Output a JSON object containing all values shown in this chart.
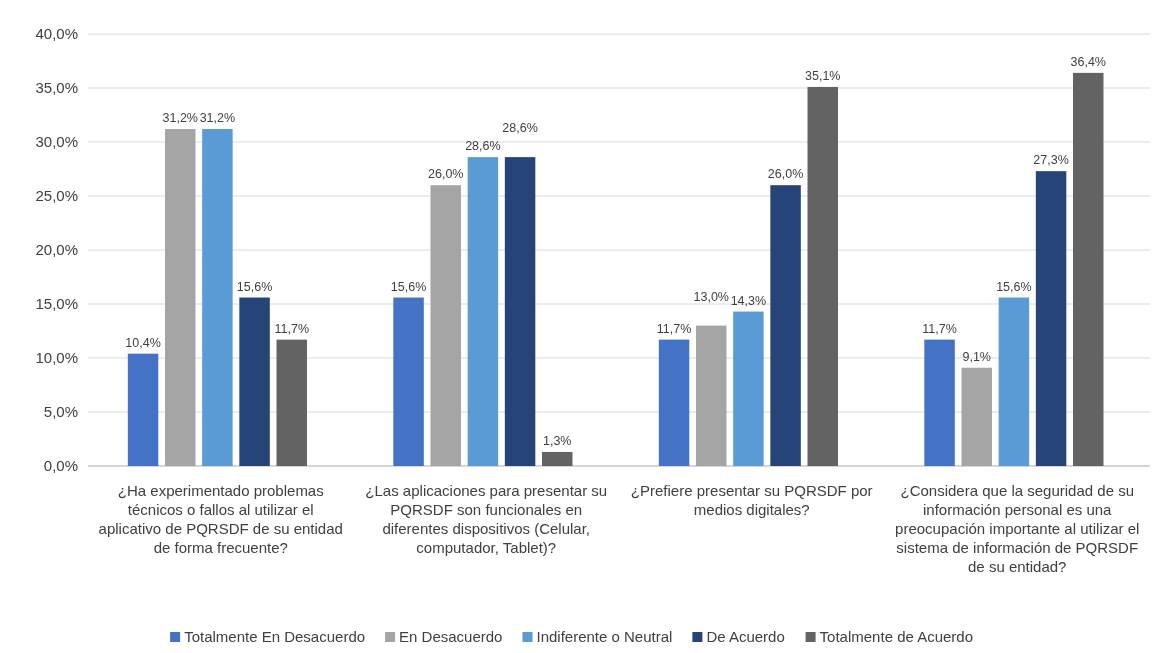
{
  "chart_data": {
    "type": "bar",
    "categories": [
      "¿Ha experimentado problemas técnicos o fallos al utilizar el aplicativo de PQRSDF de su entidad de forma frecuente?",
      "¿Las aplicaciones para presentar su PQRSDF son funcionales en diferentes dispositivos (Celular, computador, Tablet)?",
      "¿Prefiere presentar su PQRSDF por medios digitales?",
      "¿Considera que la seguridad de su información personal es una preocupación importante al utilizar el sistema de información de PQRSDF de su entidad?"
    ],
    "series": [
      {
        "name": "Totalmente En Desacuerdo",
        "color": "#4472c4",
        "values": [
          10.4,
          15.6,
          11.7,
          11.7
        ],
        "value_labels": [
          "10,4%",
          "15,6%",
          "11,7%",
          "11,7%"
        ]
      },
      {
        "name": "En Desacuerdo",
        "color": "#a5a5a5",
        "values": [
          31.2,
          26.0,
          13.0,
          9.1
        ],
        "value_labels": [
          "31,2%",
          "26,0%",
          "13,0%",
          "9,1%"
        ]
      },
      {
        "name": "Indiferente o Neutral",
        "color": "#5b9bd5",
        "values": [
          31.2,
          28.6,
          14.3,
          15.6
        ],
        "value_labels": [
          "31,2%",
          "28,6%",
          "14,3%",
          "15,6%"
        ]
      },
      {
        "name": "De Acuerdo",
        "color": "#264478",
        "values": [
          15.6,
          28.6,
          26.0,
          27.3
        ],
        "value_labels": [
          "15,6%",
          "28,6%",
          "26,0%",
          "27,3%"
        ]
      },
      {
        "name": "Totalmente de Acuerdo",
        "color": "#636363",
        "values": [
          11.7,
          1.3,
          35.1,
          36.4
        ],
        "value_labels": [
          "11,7%",
          "1,3%",
          "35,1%",
          "36,4%"
        ]
      }
    ],
    "ylim": [
      0,
      40
    ],
    "yticks": [
      {
        "value": 0,
        "label": "0,0%"
      },
      {
        "value": 5,
        "label": "5,0%"
      },
      {
        "value": 10,
        "label": "10,0%"
      },
      {
        "value": 15,
        "label": "15,0%"
      },
      {
        "value": 20,
        "label": "20,0%"
      },
      {
        "value": 25,
        "label": "25,0%"
      },
      {
        "value": 30,
        "label": "30,0%"
      },
      {
        "value": 35,
        "label": "35,0%"
      },
      {
        "value": 40,
        "label": "40,0%"
      }
    ],
    "grid": "y",
    "legend": "bottom"
  }
}
